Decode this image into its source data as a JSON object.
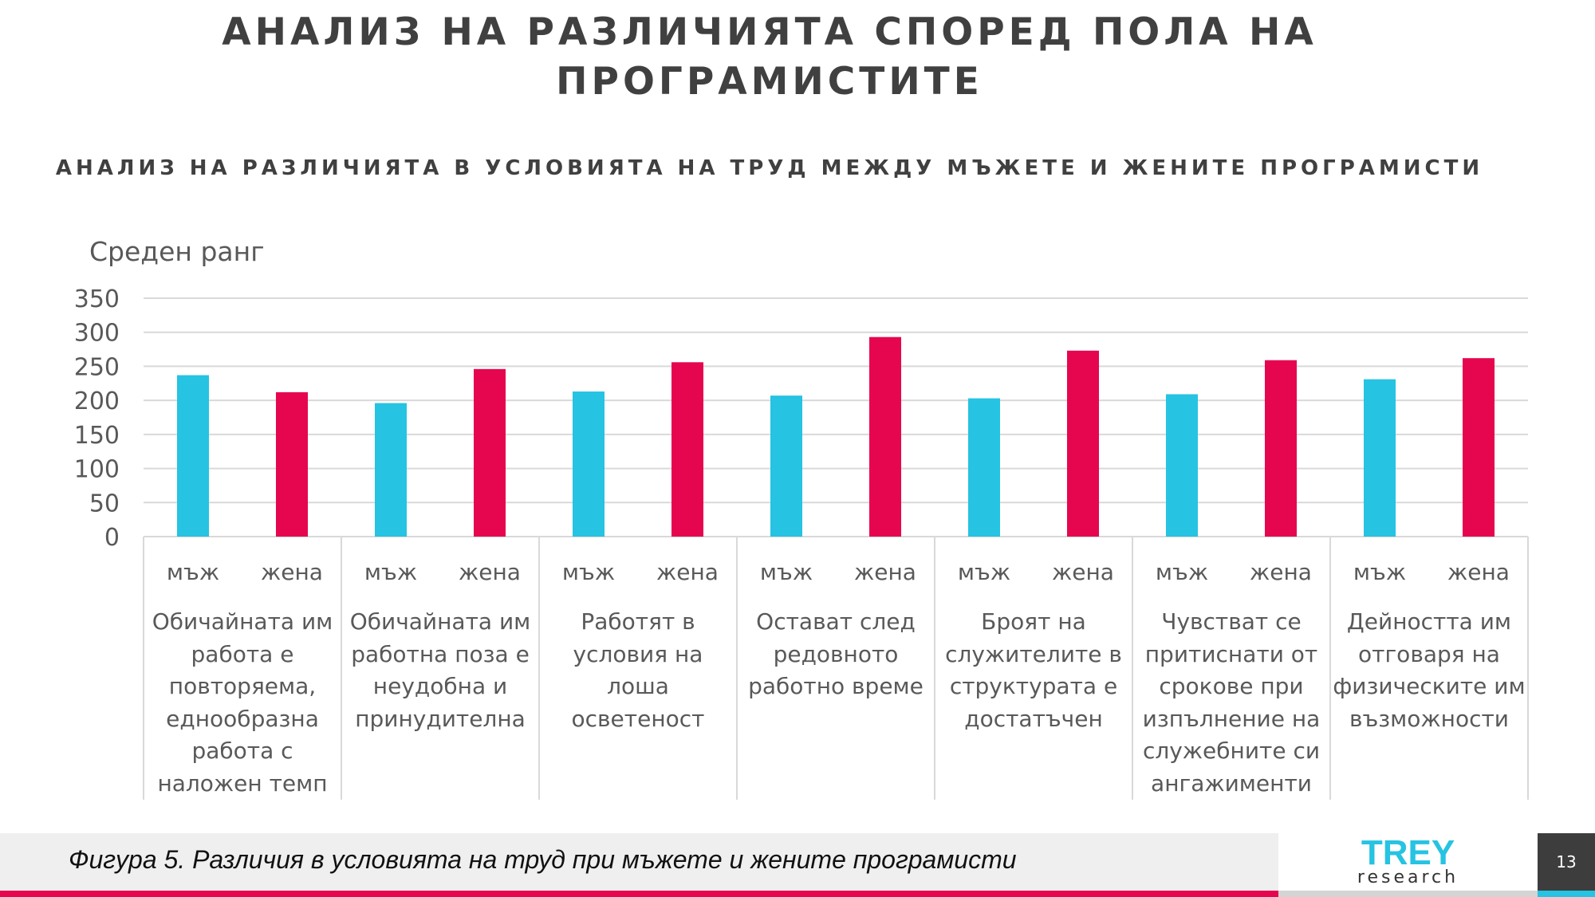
{
  "slide": {
    "title": "АНАЛИЗ НА РАЗЛИЧИЯТА СПОРЕД ПОЛА НА ПРОГРАМИСТИТЕ",
    "page_number": "13",
    "footer_caption": "Фигура 5. Различия в условията на труд при мъжете и жените програмисти",
    "logo": {
      "main": "TREY",
      "sub": "research"
    }
  },
  "colors": {
    "male": "#26c3e2",
    "female": "#e6064f",
    "grid": "#d9d9d9",
    "accent_red": "#e6064f",
    "accent_cyan": "#26c3e2"
  },
  "chart_data": {
    "type": "bar",
    "title": "АНАЛИЗ НА РАЗЛИЧИЯТА В УСЛОВИЯТА НА ТРУД МЕЖДУ МЪЖЕТЕ И ЖЕНИТЕ ПРОГРАМИСТИ",
    "ylabel": "Среден ранг",
    "ylim": [
      0,
      350
    ],
    "yticks": [
      0,
      50,
      100,
      150,
      200,
      250,
      300,
      350
    ],
    "grid": true,
    "subcategories": [
      "мъж",
      "жена"
    ],
    "categories": [
      "Обичайната им работа е повторяема, еднообразна работа с наложен темп",
      "Обичайната им работна поза е неудобна и принудителна",
      "Работят в условия на лоша осветеност",
      "Остават след редовното работно време",
      "Броят на служителите в структурата е достатъчен",
      "Чувстват се притиснати от срокове при изпълнение на служебните си ангажименти",
      "Дейността им отговаря на физическите им възможности"
    ],
    "series": [
      {
        "name": "мъж",
        "values": [
          237,
          196,
          213,
          207,
          203,
          209,
          231
        ]
      },
      {
        "name": "жена",
        "values": [
          212,
          246,
          256,
          293,
          273,
          259,
          262
        ]
      }
    ]
  }
}
